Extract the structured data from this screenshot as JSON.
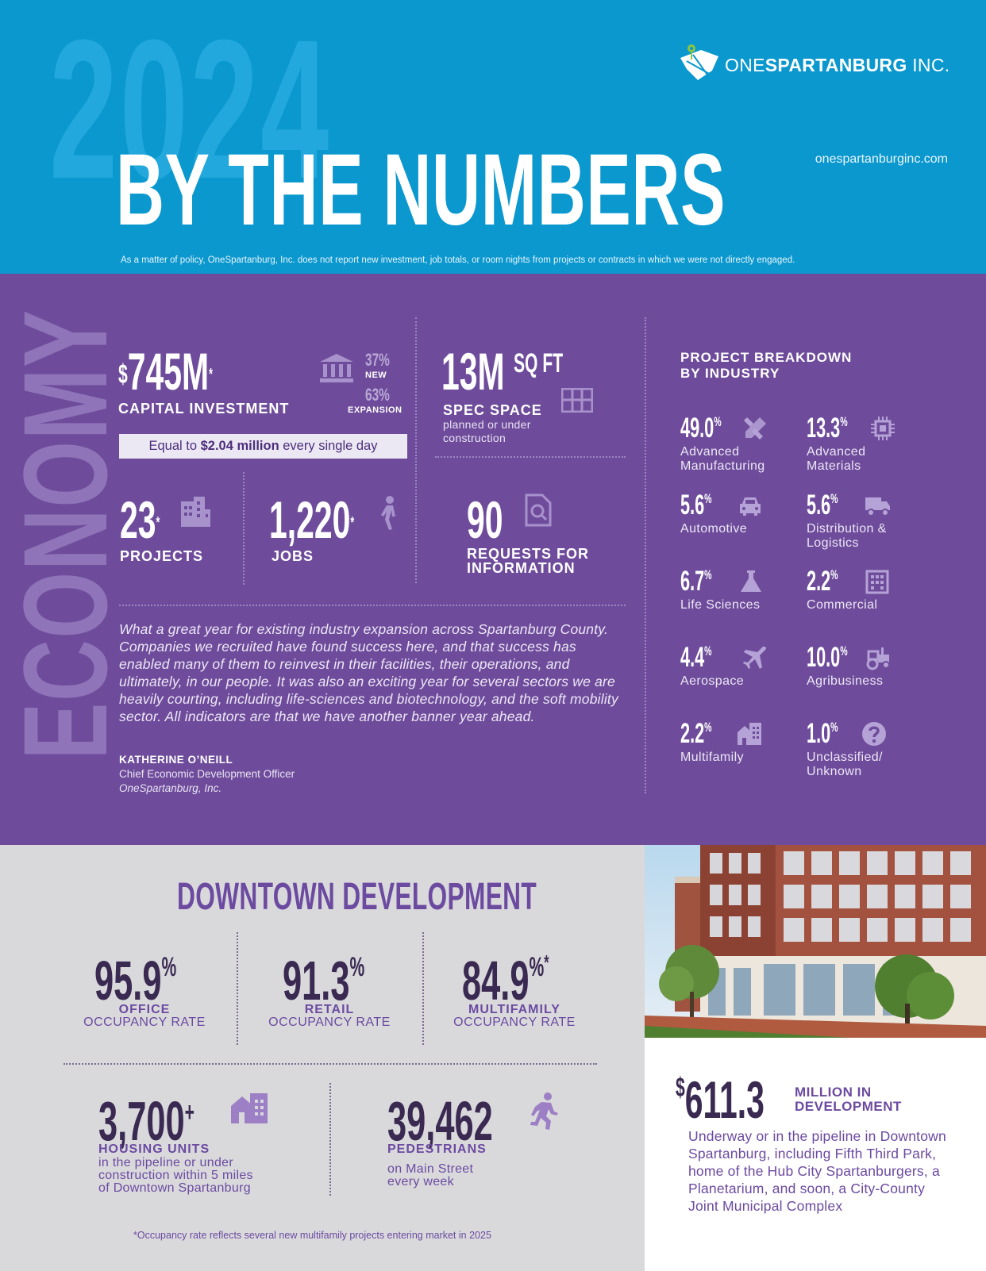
{
  "header": {
    "year": "2024",
    "title": "BY THE NUMBERS",
    "logo_light": "ONE",
    "logo_bold": "SPARTANBURG",
    "logo_suffix": " INC.",
    "website": "onespartanburginc.com",
    "policy_note": "As a matter of policy, OneSpartanburg, Inc. does not report new investment, job totals, or room nights from projects or contracts in which we were not directly engaged."
  },
  "economy": {
    "section_label": "ECONOMY",
    "capital": {
      "dollar": "$",
      "value": "745M",
      "asterisk": "*",
      "label": "CAPITAL INVESTMENT",
      "new_pct": "37%",
      "new_label": "NEW",
      "expansion_pct": "63%",
      "expansion_label": "EXPANSION",
      "equal_prefix": "Equal to ",
      "equal_bold": "$2.04 million",
      "equal_suffix": " every single day"
    },
    "spec_space": {
      "value": "13M",
      "unit": "SQ FT",
      "label": "SPEC SPACE",
      "sub_1": "planned or under",
      "sub_2": "construction"
    },
    "projects": {
      "value": "23",
      "asterisk": "*",
      "label": "PROJECTS"
    },
    "jobs": {
      "value": "1,220",
      "asterisk": "*",
      "label": "JOBS"
    },
    "rfi": {
      "value": "90",
      "label_1": "REQUESTS FOR",
      "label_2": "INFORMATION"
    },
    "quote": "What a great year for existing industry expansion across Spartanburg County. Companies we recruited have found success here, and that success has enabled many of them to reinvest in their facilities, their operations, and ultimately, in our people. It was also an exciting year for several sectors we are heavily courting, including life-sciences and biotechnology, and the soft mobility sector. All indicators are that we have another banner year ahead.",
    "quote_name": "KATHERINE O’NEILL",
    "quote_title": "Chief Economic Development Officer",
    "quote_org": "OneSpartanburg, Inc."
  },
  "breakdown": {
    "title_1": "PROJECT BREAKDOWN",
    "title_2": "BY INDUSTRY",
    "items": [
      {
        "pct": "49.0",
        "name_1": "Advanced",
        "name_2": "Manufacturing",
        "icon": "tools-icon"
      },
      {
        "pct": "13.3",
        "name_1": "Advanced",
        "name_2": "Materials",
        "icon": "chip-icon"
      },
      {
        "pct": "5.6",
        "name_1": "Automotive",
        "name_2": "",
        "icon": "car-icon"
      },
      {
        "pct": "5.6",
        "name_1": "Distribution &",
        "name_2": "Logistics",
        "icon": "truck-icon"
      },
      {
        "pct": "6.7",
        "name_1": "Life Sciences",
        "name_2": "",
        "icon": "flask-icon"
      },
      {
        "pct": "2.2",
        "name_1": "Commercial",
        "name_2": "",
        "icon": "building-icon"
      },
      {
        "pct": "4.4",
        "name_1": "Aerospace",
        "name_2": "",
        "icon": "airplane-icon"
      },
      {
        "pct": "10.0",
        "name_1": "Agribusiness",
        "name_2": "",
        "icon": "tractor-icon"
      },
      {
        "pct": "2.2",
        "name_1": "Multifamily",
        "name_2": "",
        "icon": "houses-icon"
      },
      {
        "pct": "1.0",
        "name_1": "Unclassified/",
        "name_2": "Unknown",
        "icon": "question-icon"
      }
    ],
    "pct_sign": "%"
  },
  "downtown": {
    "title": "DOWNTOWN DEVELOPMENT",
    "office": {
      "value": "95.9",
      "pct": "%",
      "label": "OFFICE",
      "sub": "OCCUPANCY RATE"
    },
    "retail": {
      "value": "91.3",
      "pct": "%",
      "label": "RETAIL",
      "sub": "OCCUPANCY RATE"
    },
    "multifamily": {
      "value": "84.9",
      "pct": "%",
      "asterisk": "*",
      "label": "MULTIFAMILY",
      "sub": "OCCUPANCY RATE"
    },
    "housing": {
      "value": "3,700",
      "plus": "+",
      "label": "HOUSING UNITS",
      "sub_1": "in the pipeline or under",
      "sub_2": "construction within 5 miles",
      "sub_3": "of Downtown Spartanburg"
    },
    "pedestrians": {
      "value": "39,462",
      "label": "PEDESTRIANS",
      "sub_1": "on Main Street",
      "sub_2": "every week"
    },
    "footnote": "*Occupancy rate reflects several new multifamily projects entering market in 2025"
  },
  "development": {
    "dollar": "$",
    "value": "611.3",
    "label_1": "MILLION IN",
    "label_2": "DEVELOPMENT",
    "description": "Underway or in the pipeline in Downtown Spartanburg, including Fifth Third Park, home of the Hub City Spartanburgers, a Planetarium, and soon, a City-County Joint Municipal Complex"
  },
  "colors": {
    "header_blue": "#0a98cf",
    "economy_purple": "#6e4c9b",
    "downtown_gray": "#d9d9dc",
    "accent_purple": "#6b4aa0",
    "dark_purple": "#3a2a52"
  }
}
